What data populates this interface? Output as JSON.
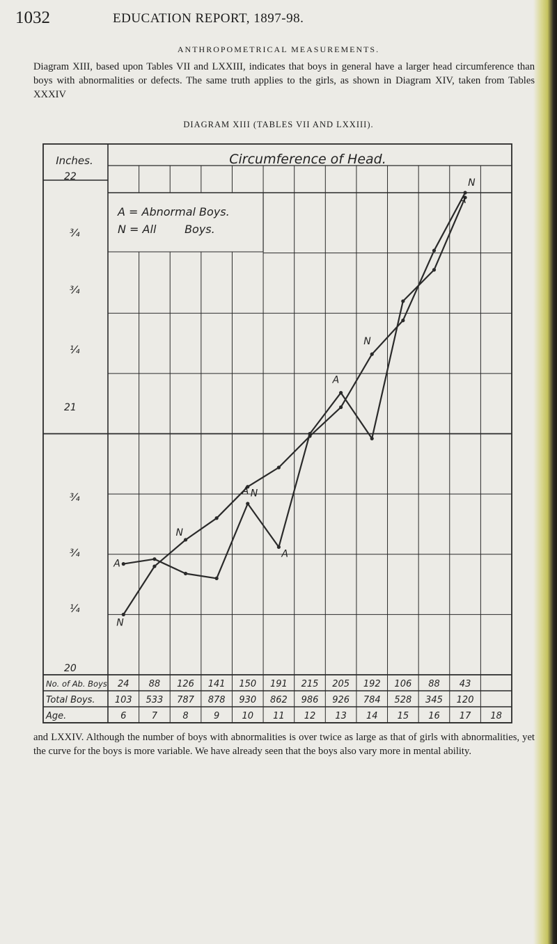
{
  "page": {
    "page_number": "1032",
    "running_title": "EDUCATION REPORT, 1897-98.",
    "section_title": "ANTHROPOMETRICAL MEASUREMENTS.",
    "intro_paragraph": "Diagram XIII, based upon Tables VII and LXXIII, indicates that boys in general have a larger head circumference than boys with abnormalities or defects. The same truth applies to the girls, as shown in Diagram XIV, taken from Tables XXXIV",
    "diagram_caption": "DIAGRAM XIII (TABLES VII AND LXXIII).",
    "outro_paragraph": "and LXXIV. Although the number of boys with abnormalities is over twice as large as that of girls with abnormalities, yet the curve for the boys is more variable. We have already seen that the boys also vary more in mental ability."
  },
  "chart_data": {
    "type": "line",
    "title": "Circumference of Head.",
    "ylabel": "Inches.",
    "y_tick_labels": [
      "22",
      "¾",
      "¾",
      "¼",
      "21",
      "¾",
      "¾",
      "¼",
      "20"
    ],
    "ylim": [
      20,
      22
    ],
    "grid": true,
    "legend": {
      "placement": "top-left",
      "lines": [
        "A = Abnormal Boys.",
        "N = All        Boys."
      ]
    },
    "x": [
      6,
      7,
      8,
      9,
      10,
      11,
      12,
      13,
      14,
      15,
      16,
      17,
      18
    ],
    "x_label": "Age.",
    "series": [
      {
        "name": "A",
        "color": "#2a2a2a",
        "values": [
          20.46,
          20.48,
          20.42,
          20.4,
          20.71,
          20.53,
          21.0,
          21.17,
          20.98,
          21.55,
          21.68,
          21.98,
          null
        ]
      },
      {
        "name": "N",
        "color": "#2a2a2a",
        "values": [
          20.25,
          20.45,
          20.56,
          20.65,
          20.78,
          20.86,
          20.99,
          21.11,
          21.33,
          21.47,
          21.76,
          22.0,
          null
        ]
      }
    ],
    "table_rows": [
      {
        "label": "No. of Ab. Boys",
        "values": [
          "24",
          "88",
          "126",
          "141",
          "150",
          "191",
          "215",
          "205",
          "192",
          "106",
          "88",
          "43",
          ""
        ]
      },
      {
        "label": "Total Boys.",
        "values": [
          "103",
          "533",
          "787",
          "878",
          "930",
          "862",
          "986",
          "926",
          "784",
          "528",
          "345",
          "120",
          ""
        ]
      },
      {
        "label": "Age.",
        "values": [
          "6",
          "7",
          "8",
          "9",
          "10",
          "11",
          "12",
          "13",
          "14",
          "15",
          "16",
          "17",
          "18"
        ]
      }
    ]
  }
}
